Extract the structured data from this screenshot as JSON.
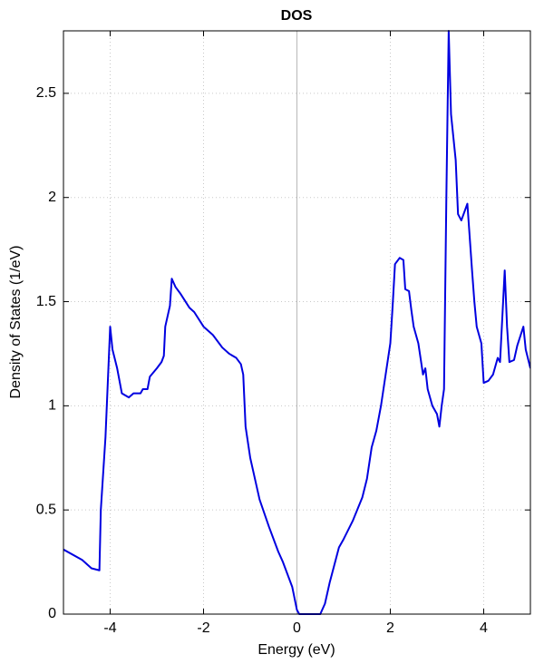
{
  "chart_data": {
    "type": "line",
    "title": "DOS",
    "x_label": "Energy (eV)",
    "y_label": "Density of States (1/eV)",
    "series": [
      {
        "name": "DOS",
        "color": "#0000e0",
        "x": [
          -5,
          -4.6,
          -4.4,
          -4.23,
          -4.2,
          -4.1,
          -4.0,
          -3.95,
          -3.85,
          -3.75,
          -3.6,
          -3.5,
          -3.35,
          -3.3,
          -3.2,
          -3.15,
          -3.0,
          -2.9,
          -2.85,
          -2.82,
          -2.72,
          -2.68,
          -2.6,
          -2.5,
          -2.3,
          -2.2,
          -2.0,
          -1.8,
          -1.6,
          -1.45,
          -1.3,
          -1.2,
          -1.15,
          -1.1,
          -1.0,
          -0.8,
          -0.6,
          -0.4,
          -0.3,
          -0.1,
          0,
          0.05,
          0.5,
          0.6,
          0.7,
          0.9,
          1.0,
          1.2,
          1.4,
          1.5,
          1.6,
          1.7,
          1.8,
          1.9,
          2.0,
          2.05,
          2.1,
          2.2,
          2.28,
          2.32,
          2.4,
          2.45,
          2.5,
          2.6,
          2.7,
          2.75,
          2.8,
          2.9,
          3.0,
          3.05,
          3.1,
          3.15,
          3.2,
          3.25,
          3.3,
          3.4,
          3.45,
          3.52,
          3.65,
          3.75,
          3.8,
          3.85,
          3.95,
          4.0,
          4.1,
          4.2,
          4.3,
          4.35,
          4.45,
          4.5,
          4.55,
          4.65,
          4.72,
          4.85,
          4.9,
          5.0
        ],
        "values": [
          0.31,
          0.26,
          0.22,
          0.21,
          0.5,
          0.85,
          1.38,
          1.27,
          1.18,
          1.06,
          1.04,
          1.06,
          1.06,
          1.08,
          1.08,
          1.14,
          1.18,
          1.21,
          1.24,
          1.38,
          1.48,
          1.61,
          1.57,
          1.54,
          1.47,
          1.45,
          1.38,
          1.34,
          1.28,
          1.25,
          1.23,
          1.2,
          1.15,
          0.9,
          0.75,
          0.55,
          0.42,
          0.3,
          0.25,
          0.13,
          0.02,
          0,
          0,
          0.05,
          0.15,
          0.32,
          0.36,
          0.45,
          0.56,
          0.65,
          0.8,
          0.88,
          1.0,
          1.15,
          1.3,
          1.48,
          1.68,
          1.71,
          1.7,
          1.56,
          1.55,
          1.46,
          1.38,
          1.3,
          1.15,
          1.18,
          1.08,
          1.0,
          0.96,
          0.9,
          1.0,
          1.08,
          2.0,
          2.8,
          2.4,
          2.18,
          1.92,
          1.89,
          1.97,
          1.65,
          1.5,
          1.38,
          1.3,
          1.11,
          1.12,
          1.15,
          1.23,
          1.21,
          1.65,
          1.38,
          1.21,
          1.22,
          1.29,
          1.38,
          1.27,
          1.18
        ]
      }
    ],
    "xlim": [
      -5,
      5
    ],
    "ylim": [
      0,
      2.8
    ],
    "xticks": [
      -4,
      -2,
      0,
      2,
      4
    ],
    "yticks": [
      0,
      0.5,
      1,
      1.5,
      2,
      2.5
    ],
    "grid": true
  }
}
